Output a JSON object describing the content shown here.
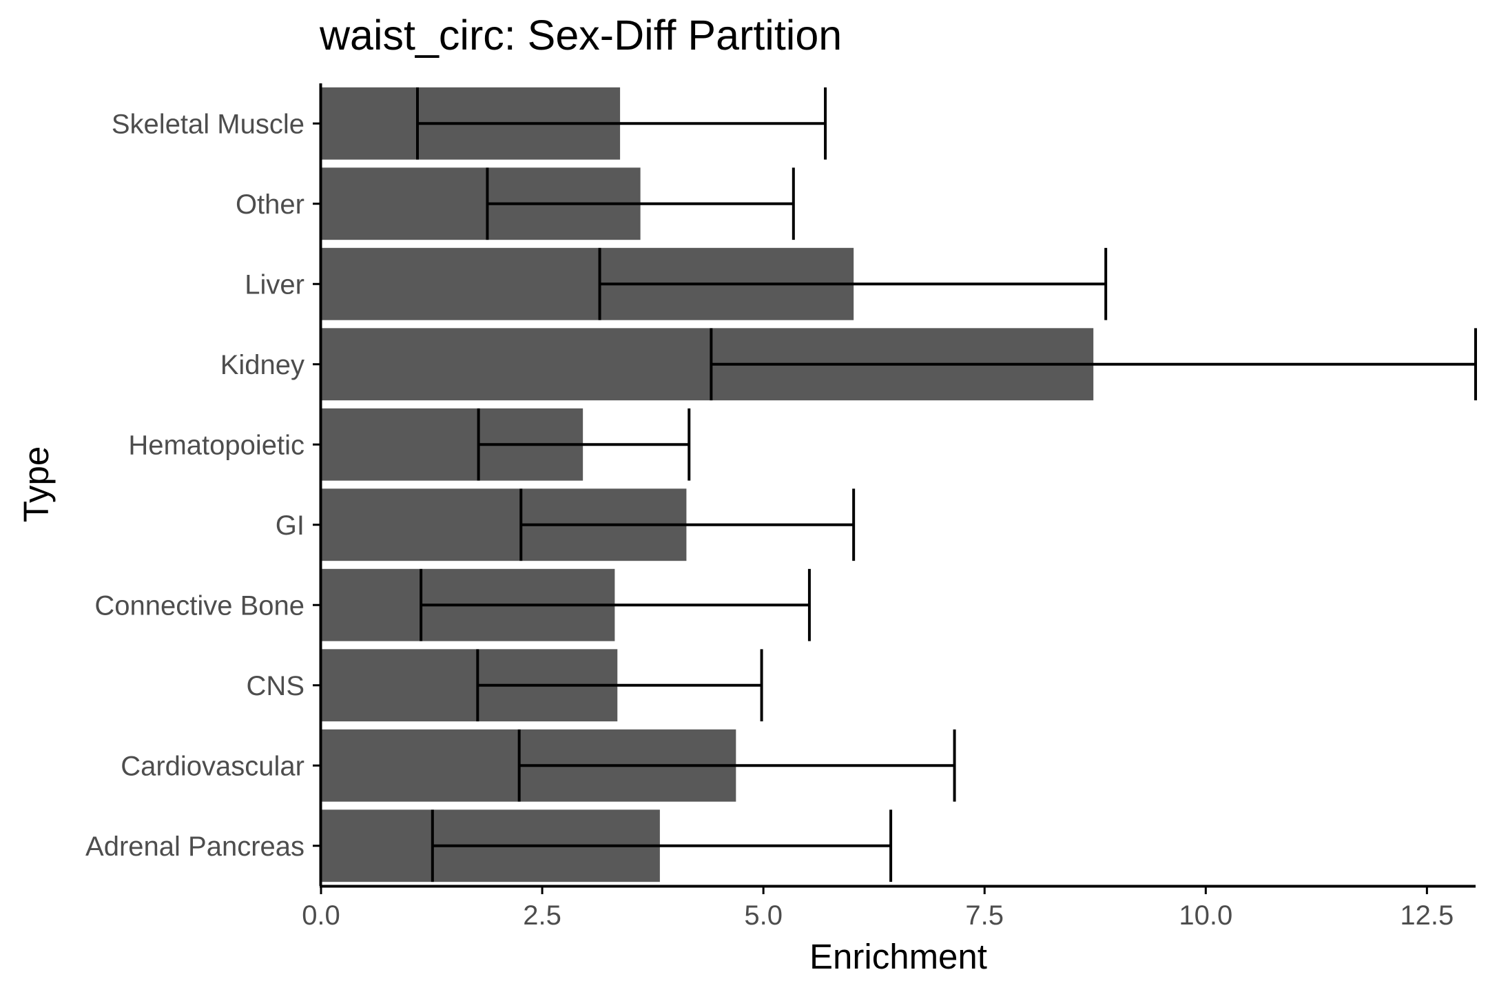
{
  "chart_data": {
    "type": "bar",
    "orientation": "horizontal",
    "title": "waist_circ: Sex-Diff Partition",
    "xlabel": "Enrichment",
    "ylabel": "Type",
    "categories": [
      "Adrenal Pancreas",
      "Cardiovascular",
      "CNS",
      "Connective Bone",
      "GI",
      "Hematopoietic",
      "Kidney",
      "Liver",
      "Other",
      "Skeletal Muscle"
    ],
    "values": [
      3.83,
      4.69,
      3.35,
      3.32,
      4.13,
      2.96,
      8.73,
      6.02,
      3.61,
      3.38
    ],
    "error_low": [
      1.26,
      2.24,
      1.77,
      1.13,
      2.26,
      1.78,
      4.41,
      3.15,
      1.88,
      1.09
    ],
    "error_high": [
      6.44,
      7.16,
      4.98,
      5.52,
      6.02,
      4.16,
      13.05,
      8.87,
      5.34,
      5.7
    ],
    "xlim": [
      0,
      13.05
    ],
    "xticks": [
      "0.0",
      "2.5",
      "5.0",
      "7.5",
      "10.0",
      "12.5"
    ],
    "grid": false,
    "legend": "none",
    "bar_color": "#595959",
    "errorbar_color": "#000000"
  }
}
